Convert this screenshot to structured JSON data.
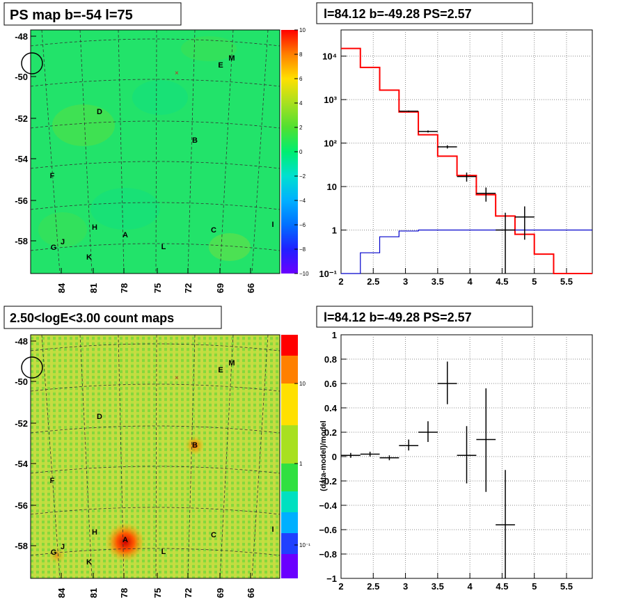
{
  "panels": {
    "map_top": {
      "title": "PS map b=-54 l=75"
    },
    "map_bottom": {
      "title": "2.50<logE<3.00 count maps"
    },
    "spec_top": {
      "title": "l=84.12 b=-49.28 PS=2.57"
    },
    "spec_bottom": {
      "title": "l=84.12 b=-49.28 PS=2.57"
    }
  },
  "map_axes": {
    "lat_ticks": [
      "-48",
      "-50",
      "-52",
      "-54",
      "-56",
      "-58"
    ],
    "lon_ticks": [
      "84",
      "81",
      "78",
      "75",
      "72",
      "69",
      "66"
    ],
    "source_labels": [
      "A",
      "B",
      "C",
      "D",
      "E",
      "F",
      "G",
      "H",
      "I",
      "J",
      "K",
      "L",
      "M"
    ],
    "ps_colorbar_ticks": [
      "10",
      "8",
      "6",
      "4",
      "2",
      "0",
      "−2",
      "−4",
      "−6",
      "−8",
      "−10"
    ],
    "count_colorbar_ticks": [
      "10",
      "1",
      "10⁻¹"
    ]
  },
  "chart_data": [
    {
      "type": "line",
      "panel": "spec_top",
      "title": "l=84.12 b=-49.28 PS=2.57",
      "y_scale": "log",
      "xlim": [
        2.0,
        5.9
      ],
      "ylim": [
        0.1,
        40000
      ],
      "x_tick_labels": [
        "2",
        "2.5",
        "3",
        "3.5",
        "4",
        "4.5",
        "5",
        "5.5"
      ],
      "y_tick_labels": [
        "10⁻¹",
        "1",
        "10",
        "10²",
        "10³",
        "10⁴"
      ],
      "grid": true,
      "series": [
        {
          "color": "#ff0000",
          "style": "step",
          "edges": [
            2.0,
            2.3,
            2.6,
            2.9,
            3.2,
            3.5,
            3.8,
            4.1,
            4.4,
            4.7,
            5.0,
            5.3,
            5.6,
            5.9
          ],
          "values": [
            15000,
            5500,
            1650,
            520,
            155,
            50,
            18,
            6.5,
            2.1,
            0.8,
            0.28,
            0.1,
            0.1
          ]
        },
        {
          "color": "#0000cc",
          "style": "step",
          "edges": [
            2.0,
            2.3,
            2.6,
            2.9,
            3.2,
            3.5,
            3.8,
            4.1,
            4.4,
            4.7,
            5.0,
            5.3,
            5.6,
            5.9
          ],
          "values": [
            0.1,
            0.3,
            0.7,
            0.95,
            1.0,
            1.0,
            1.0,
            1.0,
            1.0,
            1.0,
            1.0,
            1.0,
            1.0
          ]
        },
        {
          "color": "#000000",
          "style": "points",
          "points": [
            {
              "x": 3.05,
              "y": 540,
              "xerr": 0.15,
              "ylo": 520,
              "yhi": 560
            },
            {
              "x": 3.35,
              "y": 185,
              "xerr": 0.15,
              "ylo": 175,
              "yhi": 195
            },
            {
              "x": 3.65,
              "y": 82,
              "xerr": 0.15,
              "ylo": 75,
              "yhi": 89
            },
            {
              "x": 3.95,
              "y": 17,
              "xerr": 0.15,
              "ylo": 13,
              "yhi": 21
            },
            {
              "x": 4.25,
              "y": 7,
              "xerr": 0.15,
              "ylo": 4.5,
              "yhi": 9.5
            },
            {
              "x": 4.55,
              "y": 1,
              "xerr": 0.15,
              "ylo": 0.1,
              "yhi": 2.5
            },
            {
              "x": 4.85,
              "y": 2,
              "xerr": 0.15,
              "ylo": 0.6,
              "yhi": 3.5
            }
          ]
        }
      ]
    },
    {
      "type": "scatter",
      "panel": "spec_bottom",
      "title": "l=84.12 b=-49.28 PS=2.57",
      "ylabel": "(data-model)/model",
      "xlim": [
        2.0,
        5.9
      ],
      "ylim": [
        -1.0,
        1.0
      ],
      "x_tick_labels": [
        "2",
        "2.5",
        "3",
        "3.5",
        "4",
        "4.5",
        "5",
        "5.5"
      ],
      "y_tick_labels": [
        "1",
        "0.8",
        "0.6",
        "0.4",
        "0.2",
        "0",
        "−0.2",
        "−0.4",
        "−0.6",
        "−0.8",
        "−1"
      ],
      "grid": true,
      "series": [
        {
          "color": "#000000",
          "points": [
            {
              "x": 2.15,
              "y": 0.01,
              "xerr": 0.15,
              "ylo": -0.01,
              "yhi": 0.03
            },
            {
              "x": 2.45,
              "y": 0.02,
              "xerr": 0.15,
              "ylo": 0.0,
              "yhi": 0.04
            },
            {
              "x": 2.75,
              "y": -0.01,
              "xerr": 0.15,
              "ylo": -0.03,
              "yhi": 0.01
            },
            {
              "x": 3.05,
              "y": 0.09,
              "xerr": 0.15,
              "ylo": 0.05,
              "yhi": 0.14
            },
            {
              "x": 3.35,
              "y": 0.2,
              "xerr": 0.15,
              "ylo": 0.12,
              "yhi": 0.29
            },
            {
              "x": 3.65,
              "y": 0.6,
              "xerr": 0.15,
              "ylo": 0.43,
              "yhi": 0.78
            },
            {
              "x": 3.95,
              "y": 0.01,
              "xerr": 0.15,
              "ylo": -0.22,
              "yhi": 0.25
            },
            {
              "x": 4.25,
              "y": 0.14,
              "xerr": 0.15,
              "ylo": -0.29,
              "yhi": 0.56
            },
            {
              "x": 4.55,
              "y": -0.56,
              "xerr": 0.15,
              "ylo": -1.0,
              "yhi": -0.11
            }
          ]
        }
      ]
    }
  ]
}
